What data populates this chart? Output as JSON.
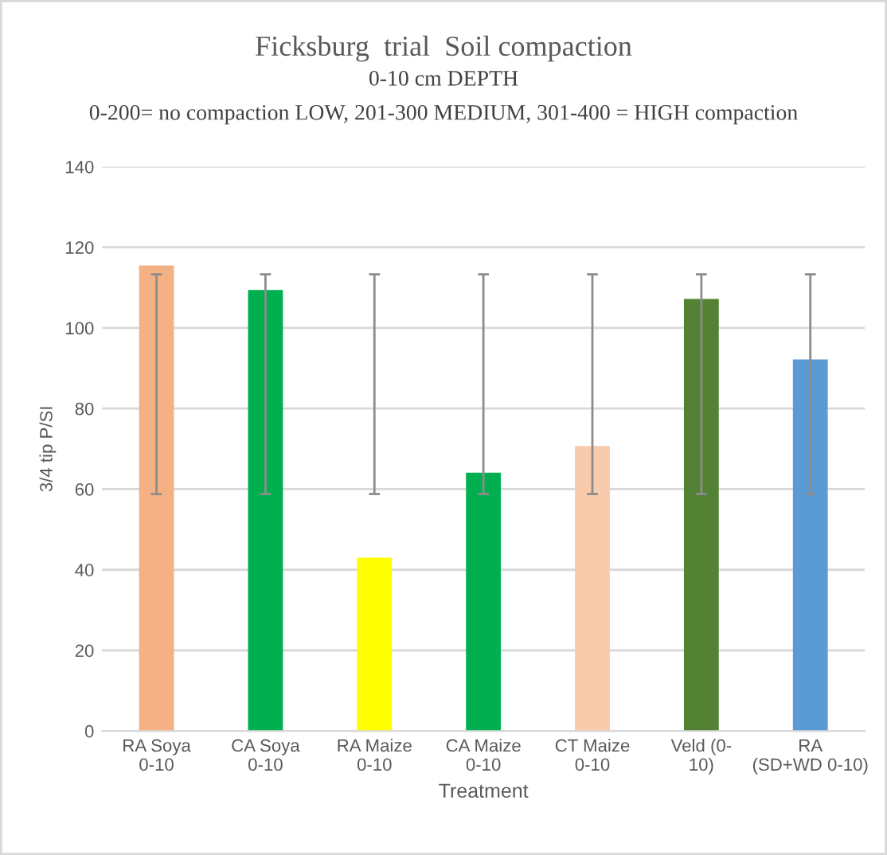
{
  "chart_data": {
    "type": "bar",
    "title": "Ficksburg  trial  Soil compaction",
    "subtitle": "0-10 cm DEPTH",
    "annotations": [
      "0-200= no compaction LOW, 201-300 MEDIUM, 301-400 = HIGH compaction"
    ],
    "xlabel": "Treatment",
    "ylabel": "3/4 tip P/SI",
    "categories": [
      "RA Soya 0-10",
      "CA Soya 0-10",
      "RA Maize 0-10",
      "CA Maize 0-10",
      "CT Maize 0-10",
      "Veld (0-10)",
      "RA (SD+WD 0-10)"
    ],
    "values": [
      115.5,
      109.4,
      43.0,
      64.1,
      70.7,
      107.2,
      92.2
    ],
    "colors": [
      "#f4b183",
      "#00b050",
      "#ffff00",
      "#00b050",
      "#f8cbad",
      "#548235",
      "#5b9bd5"
    ],
    "errors": [
      [
        58.8,
        113.3
      ],
      [
        58.8,
        113.3
      ],
      [
        58.8,
        113.3
      ],
      [
        58.8,
        113.3
      ],
      [
        58.8,
        113.3
      ],
      [
        58.8,
        113.3
      ],
      [
        58.8,
        113.3
      ]
    ],
    "ylim": [
      0,
      140
    ],
    "yticks": [
      0,
      20,
      40,
      60,
      80,
      100,
      120,
      140
    ],
    "grid": "y",
    "legend": false
  }
}
